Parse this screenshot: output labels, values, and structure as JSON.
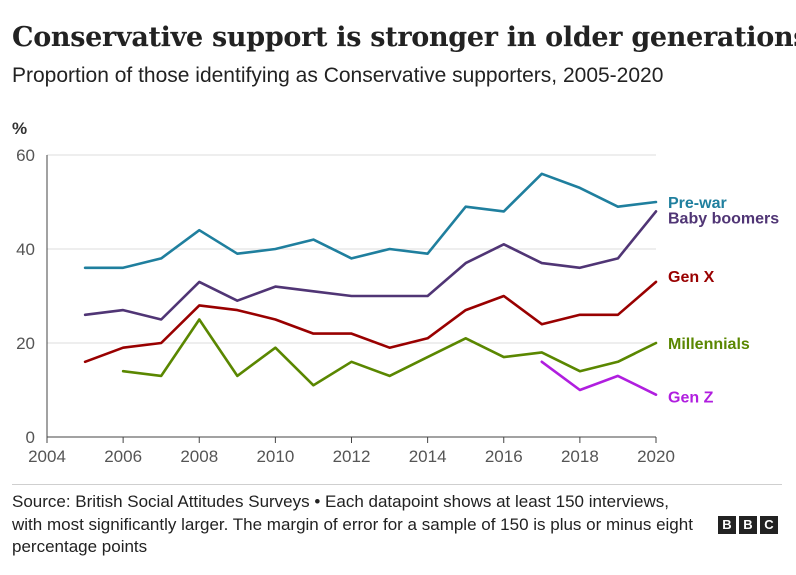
{
  "header": {
    "title": "Conservative support is stronger in older generations",
    "subtitle": "Proportion of those identifying as Conservative supporters, 2005-2020"
  },
  "footer": {
    "source": "Source: British Social Attitudes Surveys • Each datapoint shows at least 150 interviews, with most significantly larger. The margin of error for a sample of 150 is plus or minus eight percentage points",
    "logo_letters": [
      "B",
      "B",
      "C"
    ]
  },
  "chart_data": {
    "type": "line",
    "title": "Conservative support is stronger in older generations",
    "subtitle": "Proportion of those identifying as Conservative supporters, 2005-2020",
    "xlabel": "",
    "ylabel": "%",
    "xlim": [
      2004,
      2020
    ],
    "ylim": [
      0,
      60
    ],
    "xticks": [
      2004,
      2006,
      2008,
      2010,
      2012,
      2014,
      2016,
      2018,
      2020
    ],
    "yticks": [
      0,
      20,
      40,
      60
    ],
    "grid": true,
    "legend": "direct labels at right end of lines",
    "series": [
      {
        "name": "Pre-war",
        "color": "#1f7f9e",
        "x": [
          2005,
          2006,
          2007,
          2008,
          2009,
          2010,
          2011,
          2012,
          2013,
          2014,
          2015,
          2016,
          2017,
          2018,
          2019,
          2020
        ],
        "values": [
          36,
          36,
          38,
          44,
          39,
          40,
          42,
          38,
          40,
          39,
          49,
          48,
          56,
          53,
          49,
          50
        ]
      },
      {
        "name": "Baby boomers",
        "color": "#503575",
        "x": [
          2005,
          2006,
          2007,
          2008,
          2009,
          2010,
          2011,
          2012,
          2013,
          2014,
          2015,
          2016,
          2017,
          2018,
          2019,
          2020
        ],
        "values": [
          26,
          27,
          25,
          33,
          29,
          32,
          31,
          30,
          30,
          30,
          37,
          41,
          37,
          36,
          38,
          48
        ]
      },
      {
        "name": "Gen X",
        "color": "#990000",
        "x": [
          2005,
          2006,
          2007,
          2008,
          2009,
          2010,
          2011,
          2012,
          2013,
          2014,
          2015,
          2016,
          2017,
          2018,
          2019,
          2020
        ],
        "values": [
          16,
          19,
          20,
          28,
          27,
          25,
          22,
          22,
          19,
          21,
          27,
          30,
          24,
          26,
          26,
          33
        ]
      },
      {
        "name": "Millennials",
        "color": "#5a8700",
        "x": [
          2006,
          2007,
          2008,
          2009,
          2010,
          2011,
          2012,
          2013,
          2014,
          2015,
          2016,
          2017,
          2018,
          2019,
          2020
        ],
        "values": [
          14,
          13,
          25,
          13,
          19,
          11,
          16,
          13,
          17,
          21,
          17,
          18,
          14,
          16,
          20
        ]
      },
      {
        "name": "Gen Z",
        "color": "#b01edf",
        "x": [
          2017,
          2018,
          2019,
          2020
        ],
        "values": [
          16,
          10,
          13,
          9
        ]
      }
    ]
  }
}
